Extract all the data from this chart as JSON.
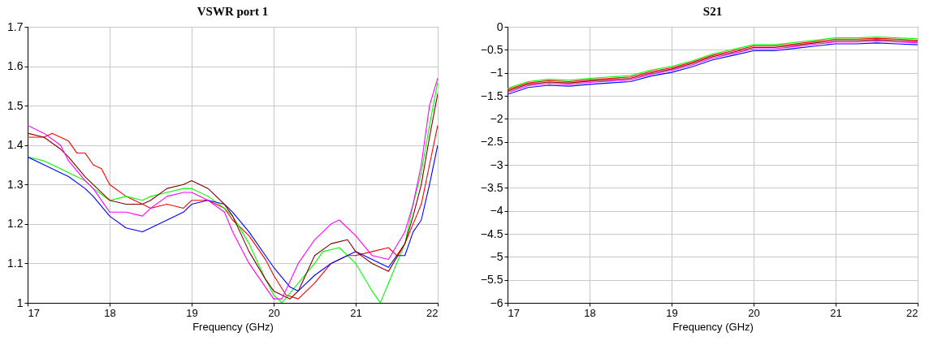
{
  "chart_data": [
    {
      "type": "line",
      "title": "VSWR port 1",
      "xlabel": "Frequency (GHz)",
      "xlim": [
        17,
        22
      ],
      "xticks": [
        17,
        18,
        19,
        20,
        21,
        22
      ],
      "ylim": [
        1,
        1.7
      ],
      "yticks": [
        1,
        1.1,
        1.2,
        1.3,
        1.4,
        1.5,
        1.6,
        1.7
      ],
      "grid": true,
      "legend": false,
      "series": [
        {
          "color": "#ff0000",
          "x": [
            17,
            17.2,
            17.3,
            17.5,
            17.6,
            17.7,
            17.8,
            17.9,
            18,
            18.2,
            18.4,
            18.5,
            18.7,
            18.9,
            19,
            19.2,
            19.4,
            19.5,
            19.7,
            19.9,
            20,
            20.15,
            20.3,
            20.5,
            20.7,
            20.9,
            21,
            21.2,
            21.4,
            21.5,
            21.6,
            21.7,
            21.8,
            21.9,
            22
          ],
          "values": [
            1.42,
            1.42,
            1.43,
            1.41,
            1.38,
            1.38,
            1.35,
            1.34,
            1.3,
            1.27,
            1.25,
            1.24,
            1.25,
            1.24,
            1.26,
            1.26,
            1.24,
            1.21,
            1.17,
            1.11,
            1.07,
            1.02,
            1.01,
            1.05,
            1.1,
            1.12,
            1.12,
            1.13,
            1.14,
            1.12,
            1.15,
            1.2,
            1.25,
            1.35,
            1.45
          ]
        },
        {
          "color": "#00ff00",
          "x": [
            17,
            17.2,
            17.4,
            17.5,
            17.7,
            17.8,
            18,
            18.2,
            18.4,
            18.5,
            18.7,
            18.9,
            19,
            19.2,
            19.4,
            19.5,
            19.7,
            19.9,
            20,
            20.1,
            20.3,
            20.5,
            20.6,
            20.8,
            21,
            21.2,
            21.3,
            21.4,
            21.6,
            21.7,
            21.8,
            21.9,
            22
          ],
          "values": [
            1.37,
            1.36,
            1.34,
            1.33,
            1.31,
            1.29,
            1.26,
            1.27,
            1.26,
            1.27,
            1.28,
            1.29,
            1.29,
            1.27,
            1.24,
            1.22,
            1.15,
            1.06,
            1.02,
            1,
            1.05,
            1.1,
            1.13,
            1.14,
            1.1,
            1.03,
            1,
            1.05,
            1.15,
            1.25,
            1.33,
            1.45,
            1.56
          ]
        },
        {
          "color": "#0000ff",
          "x": [
            17,
            17.2,
            17.4,
            17.5,
            17.7,
            17.8,
            18,
            18.2,
            18.4,
            18.5,
            18.7,
            18.9,
            19,
            19.2,
            19.4,
            19.5,
            19.7,
            19.9,
            20,
            20.2,
            20.3,
            20.5,
            20.7,
            20.9,
            21,
            21.2,
            21.4,
            21.5,
            21.6,
            21.7,
            21.8,
            21.9,
            22
          ],
          "values": [
            1.37,
            1.35,
            1.33,
            1.32,
            1.29,
            1.27,
            1.22,
            1.19,
            1.18,
            1.19,
            1.21,
            1.23,
            1.25,
            1.26,
            1.25,
            1.23,
            1.18,
            1.12,
            1.09,
            1.04,
            1.03,
            1.07,
            1.1,
            1.12,
            1.13,
            1.11,
            1.09,
            1.12,
            1.12,
            1.18,
            1.21,
            1.3,
            1.4
          ]
        },
        {
          "color": "#800000",
          "x": [
            17,
            17.2,
            17.4,
            17.5,
            17.7,
            17.8,
            18,
            18.2,
            18.4,
            18.5,
            18.7,
            18.9,
            19,
            19.2,
            19.4,
            19.5,
            19.7,
            19.9,
            20,
            20.2,
            20.3,
            20.5,
            20.7,
            20.9,
            21,
            21.2,
            21.4,
            21.6,
            21.7,
            21.8,
            21.9,
            22
          ],
          "values": [
            1.43,
            1.42,
            1.39,
            1.37,
            1.32,
            1.3,
            1.26,
            1.25,
            1.25,
            1.26,
            1.29,
            1.3,
            1.31,
            1.29,
            1.25,
            1.22,
            1.13,
            1.06,
            1.03,
            1.01,
            1.03,
            1.12,
            1.15,
            1.16,
            1.13,
            1.1,
            1.08,
            1.15,
            1.22,
            1.3,
            1.42,
            1.53
          ]
        },
        {
          "color": "#ff00ff",
          "x": [
            17,
            17.2,
            17.4,
            17.5,
            17.7,
            17.8,
            18,
            18.2,
            18.4,
            18.5,
            18.7,
            18.9,
            19,
            19.2,
            19.4,
            19.5,
            19.7,
            19.9,
            20,
            20.1,
            20.3,
            20.5,
            20.7,
            20.8,
            21,
            21.2,
            21.4,
            21.6,
            21.7,
            21.8,
            21.9,
            22
          ],
          "values": [
            1.45,
            1.43,
            1.4,
            1.36,
            1.31,
            1.29,
            1.23,
            1.23,
            1.22,
            1.24,
            1.27,
            1.28,
            1.28,
            1.26,
            1.23,
            1.18,
            1.1,
            1.04,
            1.01,
            1.01,
            1.1,
            1.16,
            1.2,
            1.21,
            1.17,
            1.12,
            1.11,
            1.18,
            1.25,
            1.35,
            1.5,
            1.57
          ]
        }
      ]
    },
    {
      "type": "line",
      "title": "S21",
      "xlabel": "Frequency (GHz)",
      "xlim": [
        17,
        22
      ],
      "xticks": [
        17,
        18,
        19,
        20,
        21,
        22
      ],
      "ylim": [
        -6,
        0
      ],
      "yticks": [
        -6,
        -5.5,
        -5,
        -4.5,
        -4,
        -3.5,
        -3,
        -2.5,
        -2,
        -1.5,
        -1,
        -0.5,
        0
      ],
      "grid": true,
      "legend": false,
      "series": [
        {
          "color": "#ff0000",
          "x": [
            17,
            17.25,
            17.5,
            17.75,
            18,
            18.25,
            18.5,
            18.75,
            19,
            19.25,
            19.5,
            19.75,
            20,
            20.25,
            20.5,
            20.75,
            21,
            21.25,
            21.5,
            21.75,
            22
          ],
          "values": [
            -1.37,
            -1.22,
            -1.17,
            -1.19,
            -1.15,
            -1.12,
            -1.09,
            -0.97,
            -0.89,
            -0.77,
            -0.62,
            -0.52,
            -0.42,
            -0.42,
            -0.37,
            -0.32,
            -0.27,
            -0.27,
            -0.25,
            -0.27,
            -0.29
          ]
        },
        {
          "color": "#00ff00",
          "x": [
            17,
            17.25,
            17.5,
            17.75,
            18,
            18.25,
            18.5,
            18.75,
            19,
            19.25,
            19.5,
            19.75,
            20,
            20.25,
            20.5,
            20.75,
            21,
            21.25,
            21.5,
            21.75,
            22
          ],
          "values": [
            -1.34,
            -1.19,
            -1.14,
            -1.16,
            -1.12,
            -1.09,
            -1.06,
            -0.94,
            -0.86,
            -0.74,
            -0.59,
            -0.49,
            -0.39,
            -0.39,
            -0.34,
            -0.29,
            -0.24,
            -0.24,
            -0.22,
            -0.24,
            -0.26
          ]
        },
        {
          "color": "#0000ff",
          "x": [
            17,
            17.25,
            17.5,
            17.75,
            18,
            18.25,
            18.5,
            18.75,
            19,
            19.25,
            19.5,
            19.75,
            20,
            20.25,
            20.5,
            20.75,
            21,
            21.25,
            21.5,
            21.75,
            22
          ],
          "values": [
            -1.47,
            -1.32,
            -1.27,
            -1.29,
            -1.25,
            -1.22,
            -1.19,
            -1.07,
            -0.99,
            -0.87,
            -0.72,
            -0.62,
            -0.52,
            -0.52,
            -0.47,
            -0.42,
            -0.37,
            -0.37,
            -0.35,
            -0.37,
            -0.39
          ]
        },
        {
          "color": "#800000",
          "x": [
            17,
            17.25,
            17.5,
            17.75,
            18,
            18.25,
            18.5,
            18.75,
            19,
            19.25,
            19.5,
            19.75,
            20,
            20.25,
            20.5,
            20.75,
            21,
            21.25,
            21.5,
            21.75,
            22
          ],
          "values": [
            -1.4,
            -1.25,
            -1.2,
            -1.22,
            -1.18,
            -1.15,
            -1.12,
            -1,
            -0.92,
            -0.8,
            -0.65,
            -0.55,
            -0.45,
            -0.45,
            -0.4,
            -0.35,
            -0.3,
            -0.3,
            -0.28,
            -0.3,
            -0.32
          ]
        },
        {
          "color": "#ff00ff",
          "x": [
            17,
            17.25,
            17.5,
            17.75,
            18,
            18.25,
            18.5,
            18.75,
            19,
            19.25,
            19.5,
            19.75,
            20,
            20.25,
            20.5,
            20.75,
            21,
            21.25,
            21.5,
            21.75,
            22
          ],
          "values": [
            -1.43,
            -1.28,
            -1.23,
            -1.25,
            -1.21,
            -1.18,
            -1.15,
            -1.03,
            -0.95,
            -0.83,
            -0.68,
            -0.58,
            -0.48,
            -0.48,
            -0.43,
            -0.38,
            -0.33,
            -0.33,
            -0.31,
            -0.33,
            -0.35
          ]
        }
      ]
    }
  ]
}
